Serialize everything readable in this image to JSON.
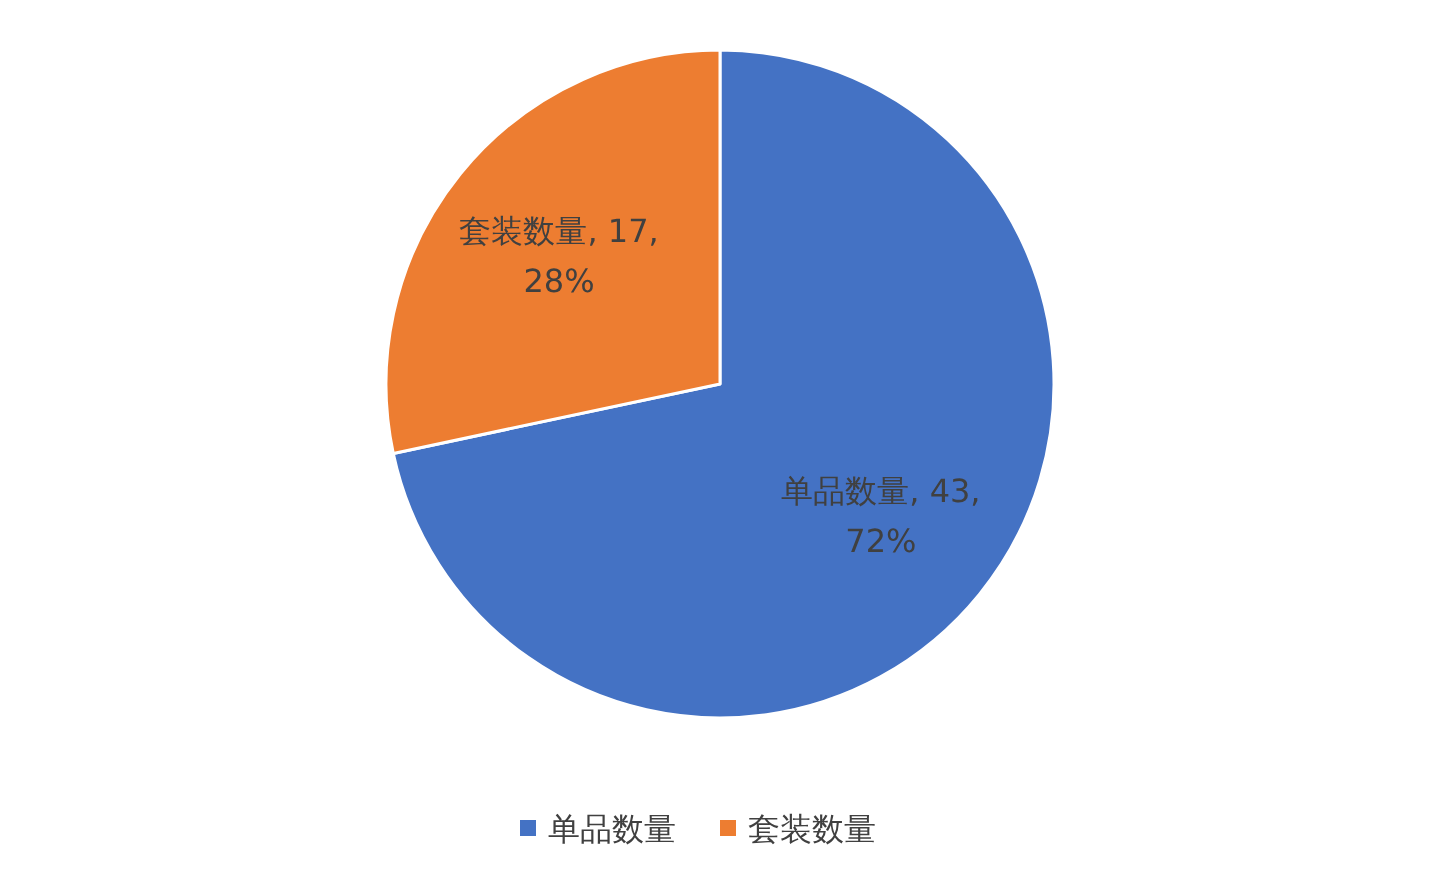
{
  "chart_data": {
    "type": "pie",
    "categories": [
      "单品数量",
      "套装数量"
    ],
    "values": [
      43,
      17
    ],
    "colors": [
      "#4472c4",
      "#ed7d31"
    ],
    "value_labels": [
      "单品数量, 43, 72%",
      "套装数量, 17, 28%"
    ],
    "legend": "bottom"
  }
}
